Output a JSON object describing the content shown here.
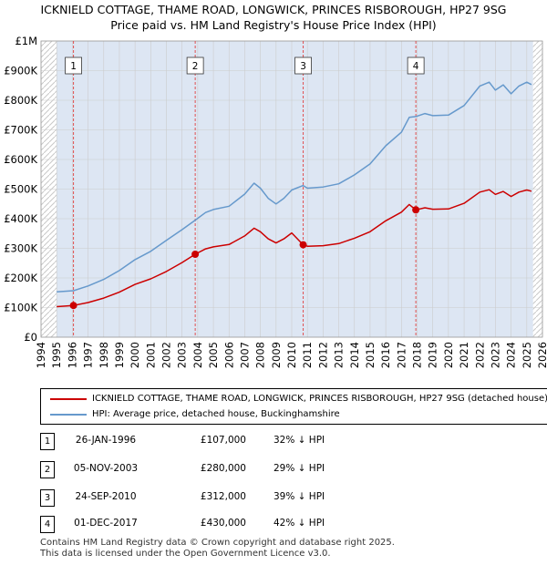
{
  "title_line1": "ICKNIELD COTTAGE, THAME ROAD, LONGWICK, PRINCES RISBOROUGH, HP27 9SG",
  "title_line2": "Price paid vs. HM Land Registry's House Price Index (HPI)",
  "colors": {
    "property": "#cc0000",
    "hpi": "#6699cc",
    "shade": "#dde6f3",
    "grid": "#cccccc",
    "vline": "#e05050"
  },
  "chart_data": {
    "type": "line",
    "title": "Price paid vs. HM Land Registry's House Price Index (HPI)",
    "xlim": [
      1994,
      2026
    ],
    "ylim": [
      0,
      1000000
    ],
    "x_ticks": [
      1994,
      1995,
      1996,
      1997,
      1998,
      1999,
      2000,
      2001,
      2002,
      2003,
      2004,
      2005,
      2006,
      2007,
      2008,
      2009,
      2010,
      2011,
      2012,
      2013,
      2014,
      2015,
      2016,
      2017,
      2018,
      2019,
      2020,
      2021,
      2022,
      2023,
      2024,
      2025,
      2026
    ],
    "x_tick_labels": [
      "1994",
      "1995",
      "1996",
      "1997",
      "1998",
      "1999",
      "2000",
      "2001",
      "2002",
      "2003",
      "2004",
      "2005",
      "2006",
      "2007",
      "2008",
      "2009",
      "2010",
      "2011",
      "2012",
      "2013",
      "2014",
      "2015",
      "2016",
      "2017",
      "2018",
      "2019",
      "2020",
      "2021",
      "2022",
      "2023",
      "2024",
      "2025",
      "2026"
    ],
    "y_ticks": [
      0,
      100000,
      200000,
      300000,
      400000,
      500000,
      600000,
      700000,
      800000,
      900000,
      1000000
    ],
    "y_tick_labels": [
      "£0",
      "£100K",
      "£200K",
      "£300K",
      "£400K",
      "£500K",
      "£600K",
      "£700K",
      "£800K",
      "£900K",
      "£1M"
    ],
    "data_range": [
      1995.0,
      2025.4
    ],
    "series": [
      {
        "name": "ICKNIELD COTTAGE, THAME ROAD, LONGWICK, PRINCES RISBOROUGH, HP27 9SG (detached house)",
        "x": [
          1995.0,
          1996.07,
          1997.0,
          1998.0,
          1999.0,
          2000.0,
          2001.0,
          2002.0,
          2003.0,
          2003.84,
          2004.5,
          2005.0,
          2006.0,
          2007.0,
          2007.6,
          2008.0,
          2008.5,
          2009.0,
          2009.5,
          2010.0,
          2010.73,
          2011.0,
          2012.0,
          2013.0,
          2014.0,
          2015.0,
          2016.0,
          2017.0,
          2017.5,
          2017.92,
          2018.5,
          2019.0,
          2020.0,
          2021.0,
          2022.0,
          2022.6,
          2023.0,
          2023.5,
          2024.0,
          2024.5,
          2025.0,
          2025.3
        ],
        "y": [
          103000,
          107000,
          117000,
          132000,
          152000,
          178000,
          197000,
          222000,
          252000,
          280000,
          298000,
          305000,
          313000,
          342000,
          368000,
          356000,
          332000,
          318000,
          332000,
          352000,
          312000,
          307000,
          309000,
          316000,
          334000,
          356000,
          393000,
          422000,
          448000,
          430000,
          437000,
          432000,
          433000,
          452000,
          490000,
          498000,
          482000,
          492000,
          475000,
          490000,
          497000,
          493000
        ]
      },
      {
        "name": "HPI: Average price, detached house, Buckinghamshire",
        "x": [
          1995.0,
          1996.07,
          1997.0,
          1998.0,
          1999.0,
          2000.0,
          2001.0,
          2002.0,
          2003.0,
          2003.84,
          2004.5,
          2005.0,
          2006.0,
          2007.0,
          2007.6,
          2008.0,
          2008.5,
          2009.0,
          2009.5,
          2010.0,
          2010.73,
          2011.0,
          2012.0,
          2013.0,
          2014.0,
          2015.0,
          2016.0,
          2017.0,
          2017.5,
          2017.92,
          2018.5,
          2019.0,
          2020.0,
          2021.0,
          2022.0,
          2022.6,
          2023.0,
          2023.5,
          2024.0,
          2024.5,
          2025.0,
          2025.3
        ],
        "y": [
          153000,
          157000,
          173000,
          195000,
          225000,
          262000,
          290000,
          327000,
          363000,
          395000,
          421000,
          431000,
          442000,
          483000,
          520000,
          503000,
          469000,
          450000,
          469000,
          497000,
          512000,
          503000,
          507000,
          518000,
          548000,
          585000,
          646000,
          692000,
          742000,
          745000,
          755000,
          748000,
          750000,
          782000,
          848000,
          861000,
          834000,
          852000,
          822000,
          848000,
          861000,
          853000
        ]
      }
    ],
    "sales": [
      {
        "label": "1",
        "x": 1996.07,
        "y": 107000
      },
      {
        "label": "2",
        "x": 2003.84,
        "y": 280000
      },
      {
        "label": "3",
        "x": 2010.73,
        "y": 312000
      },
      {
        "label": "4",
        "x": 2017.92,
        "y": 430000
      }
    ]
  },
  "legend": {
    "property_label": "ICKNIELD COTTAGE, THAME ROAD, LONGWICK, PRINCES RISBOROUGH, HP27 9SG (detached house)",
    "hpi_label": "HPI: Average price, detached house, Buckinghamshire"
  },
  "sales_table": [
    {
      "num": "1",
      "date": "26-JAN-1996",
      "price": "£107,000",
      "hpi": "32% ↓ HPI"
    },
    {
      "num": "2",
      "date": "05-NOV-2003",
      "price": "£280,000",
      "hpi": "29% ↓ HPI"
    },
    {
      "num": "3",
      "date": "24-SEP-2010",
      "price": "£312,000",
      "hpi": "39% ↓ HPI"
    },
    {
      "num": "4",
      "date": "01-DEC-2017",
      "price": "£430,000",
      "hpi": "42% ↓ HPI"
    }
  ],
  "footer": {
    "line1": "Contains HM Land Registry data © Crown copyright and database right 2025.",
    "line2": "This data is licensed under the Open Government Licence v3.0."
  }
}
